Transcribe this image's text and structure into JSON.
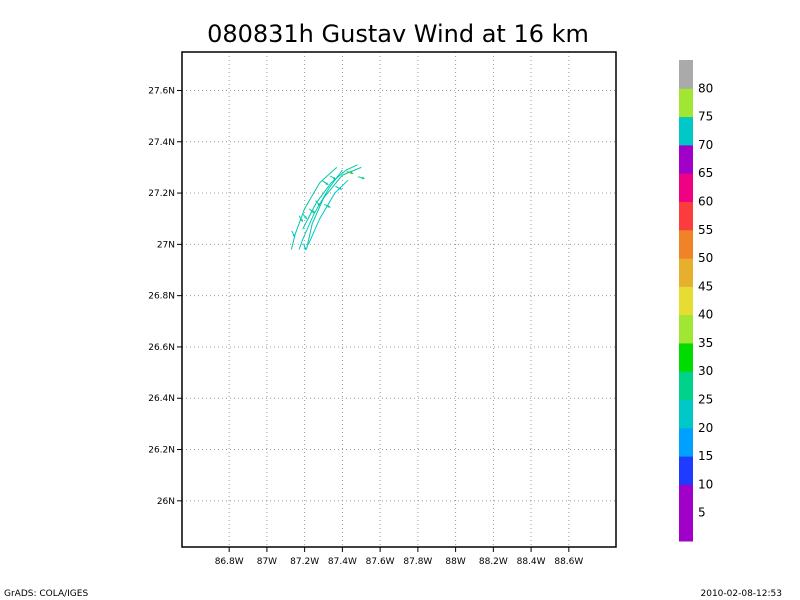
{
  "chart_data": {
    "type": "vector-field",
    "title": "080831h Gustav Wind at 16 km",
    "xlim": [
      -86.55,
      -88.85
    ],
    "ylim": [
      25.82,
      27.75
    ],
    "x_ticks": [
      {
        "value": -88.6,
        "label": "88.6W"
      },
      {
        "value": -88.4,
        "label": "88.4W"
      },
      {
        "value": -88.2,
        "label": "88.2W"
      },
      {
        "value": -88.0,
        "label": "88W"
      },
      {
        "value": -87.8,
        "label": "87.8W"
      },
      {
        "value": -87.6,
        "label": "87.6W"
      },
      {
        "value": -87.4,
        "label": "87.4W"
      },
      {
        "value": -87.2,
        "label": "87.2W"
      },
      {
        "value": -87.0,
        "label": "87W"
      },
      {
        "value": -86.8,
        "label": "86.8W"
      }
    ],
    "y_ticks": [
      {
        "value": 26.0,
        "label": "26N"
      },
      {
        "value": 26.2,
        "label": "26.2N"
      },
      {
        "value": 26.4,
        "label": "26.4N"
      },
      {
        "value": 26.6,
        "label": "26.6N"
      },
      {
        "value": 26.8,
        "label": "26.8N"
      },
      {
        "value": 27.0,
        "label": "27N"
      },
      {
        "value": 27.2,
        "label": "27.2N"
      },
      {
        "value": 27.4,
        "label": "27.4N"
      },
      {
        "value": 27.6,
        "label": "27.6N"
      }
    ],
    "grid": true,
    "streamlines": [
      {
        "color": "#00c8a0",
        "points": [
          [
            -87.5,
            27.3
          ],
          [
            -87.4,
            27.27
          ],
          [
            -87.3,
            27.18
          ],
          [
            -87.24,
            27.08
          ],
          [
            -87.21,
            26.98
          ]
        ]
      },
      {
        "color": "#00c8c8",
        "points": [
          [
            -87.4,
            27.29
          ],
          [
            -87.33,
            27.22
          ],
          [
            -87.25,
            27.12
          ],
          [
            -87.19,
            27.02
          ],
          [
            -87.17,
            26.98
          ]
        ]
      },
      {
        "color": "#00c8c8",
        "points": [
          [
            -87.43,
            27.25
          ],
          [
            -87.36,
            27.2
          ],
          [
            -87.28,
            27.1
          ],
          [
            -87.22,
            27.0
          ]
        ]
      },
      {
        "color": "#00c8a0",
        "points": [
          [
            -87.37,
            27.3
          ],
          [
            -87.28,
            27.24
          ],
          [
            -87.2,
            27.14
          ],
          [
            -87.15,
            27.04
          ],
          [
            -87.13,
            26.98
          ]
        ]
      },
      {
        "color": "#00c8a0",
        "points": [
          [
            -87.48,
            27.31
          ],
          [
            -87.42,
            27.29
          ],
          [
            -87.34,
            27.24
          ],
          [
            -87.26,
            27.16
          ],
          [
            -87.19,
            27.06
          ]
        ]
      }
    ],
    "vectors": [
      {
        "lon": -87.5,
        "lat": 27.26,
        "u": 1.0,
        "v": -0.3,
        "color": "#00c8a0"
      },
      {
        "lon": -87.44,
        "lat": 27.28,
        "u": 1.0,
        "v": -0.3,
        "color": "#32cd32"
      },
      {
        "lon": -87.35,
        "lat": 27.26,
        "u": 1.0,
        "v": -0.6,
        "color": "#00c8a0"
      },
      {
        "lon": -87.38,
        "lat": 27.22,
        "u": 1.0,
        "v": -0.5,
        "color": "#00c8c8"
      },
      {
        "lon": -87.31,
        "lat": 27.24,
        "u": 1.0,
        "v": -0.7,
        "color": "#00c8a0"
      },
      {
        "lon": -87.32,
        "lat": 27.15,
        "u": 1.0,
        "v": -0.5,
        "color": "#00c8a0"
      },
      {
        "lon": -87.27,
        "lat": 27.16,
        "u": 0.8,
        "v": -0.9,
        "color": "#00c8a0"
      },
      {
        "lon": -87.24,
        "lat": 27.13,
        "u": 0.9,
        "v": -0.6,
        "color": "#00c8a0"
      },
      {
        "lon": -87.2,
        "lat": 27.11,
        "u": 0.7,
        "v": -0.9,
        "color": "#00c8c8"
      },
      {
        "lon": -87.18,
        "lat": 27.1,
        "u": 0.6,
        "v": -1.0,
        "color": "#00c8a0"
      },
      {
        "lon": -87.14,
        "lat": 27.04,
        "u": 0.5,
        "v": -1.0,
        "color": "#00c8c8"
      },
      {
        "lon": -87.2,
        "lat": 26.99,
        "u": 0.3,
        "v": -1.0,
        "color": "#00c8c8"
      }
    ]
  },
  "colorbar": {
    "segments": [
      "#a000c8",
      "#a000c8",
      "#1e3cff",
      "#00a0ff",
      "#00c8c8",
      "#00d28c",
      "#00dc00",
      "#a0e632",
      "#e6dc32",
      "#e6af2d",
      "#f08228",
      "#fa3c3c",
      "#f00082",
      "#a000c8",
      "#00c8c8",
      "#a0e632",
      "#aaaaaa"
    ],
    "labels": [
      "5",
      "10",
      "15",
      "20",
      "25",
      "30",
      "35",
      "40",
      "45",
      "50",
      "55",
      "60",
      "65",
      "70",
      "75",
      "80"
    ]
  },
  "footer": {
    "left": "GrADS: COLA/IGES",
    "right": "2010-02-08-12:53"
  }
}
